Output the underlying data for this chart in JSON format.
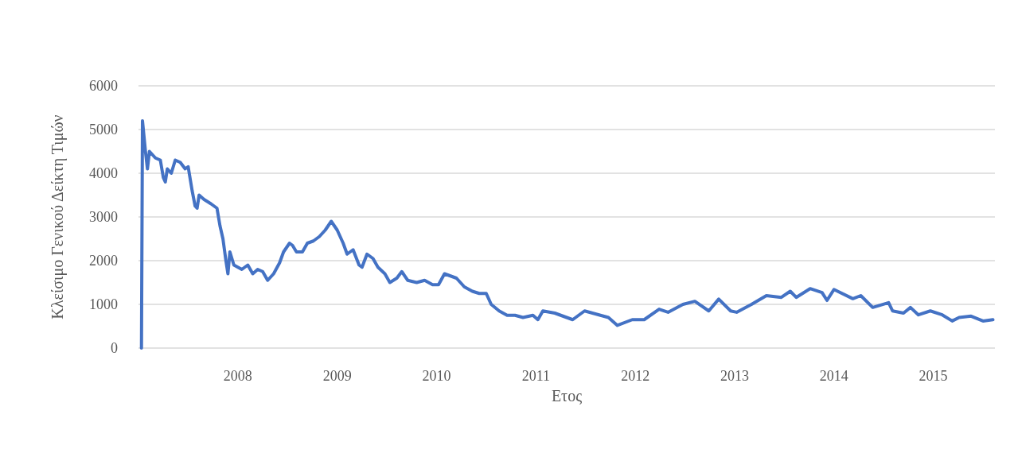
{
  "chart_data": {
    "type": "line",
    "xlabel": "Ετος",
    "ylabel": "Κλείσιμο Γενικού Δείκτη Τιμών",
    "xlim": [
      2007,
      2015.62
    ],
    "xticks": [
      2008,
      2009,
      2010,
      2011,
      2012,
      2013,
      2014,
      2015
    ],
    "ylim": [
      0,
      6000
    ],
    "yticks": [
      0,
      1000,
      2000,
      3000,
      4000,
      5000,
      6000
    ],
    "grid": "y",
    "marker": "none",
    "line_style": "solid",
    "series": [
      {
        "color": "#4472c4",
        "x": [
          2007.03,
          2007.04,
          2007.07,
          2007.09,
          2007.11,
          2007.17,
          2007.22,
          2007.25,
          2007.27,
          2007.29,
          2007.33,
          2007.37,
          2007.42,
          2007.47,
          2007.5,
          2007.54,
          2007.57,
          2007.59,
          2007.61,
          2007.66,
          2007.73,
          2007.79,
          2007.82,
          2007.85,
          2007.88,
          2007.9,
          2007.92,
          2007.96,
          2008.04,
          2008.1,
          2008.15,
          2008.2,
          2008.25,
          2008.3,
          2008.36,
          2008.42,
          2008.46,
          2008.52,
          2008.55,
          2008.59,
          2008.65,
          2008.7,
          2008.76,
          2008.82,
          2008.88,
          2008.94,
          2009.0,
          2009.06,
          2009.1,
          2009.16,
          2009.22,
          2009.25,
          2009.3,
          2009.36,
          2009.41,
          2009.48,
          2009.53,
          2009.6,
          2009.65,
          2009.71,
          2009.8,
          2009.88,
          2009.96,
          2010.02,
          2010.08,
          2010.14,
          2010.2,
          2010.28,
          2010.36,
          2010.43,
          2010.5,
          2010.55,
          2010.63,
          2010.71,
          2010.79,
          2010.87,
          2010.97,
          2011.02,
          2011.07,
          2011.19,
          2011.37,
          2011.49,
          2011.73,
          2011.82,
          2011.97,
          2012.09,
          2012.24,
          2012.33,
          2012.48,
          2012.6,
          2012.74,
          2012.84,
          2012.96,
          2013.02,
          2013.17,
          2013.32,
          2013.47,
          2013.56,
          2013.62,
          2013.76,
          2013.88,
          2013.93,
          2014.0,
          2014.19,
          2014.27,
          2014.39,
          2014.55,
          2014.59,
          2014.7,
          2014.77,
          2014.85,
          2014.97,
          2015.09,
          2015.19,
          2015.26,
          2015.38,
          2015.5,
          2015.6
        ],
        "values": [
          0,
          5200,
          4500,
          4100,
          4500,
          4350,
          4300,
          3900,
          3800,
          4100,
          4000,
          4300,
          4250,
          4100,
          4150,
          3600,
          3250,
          3200,
          3500,
          3400,
          3300,
          3200,
          2800,
          2500,
          2000,
          1700,
          2200,
          1900,
          1800,
          1900,
          1700,
          1800,
          1750,
          1550,
          1700,
          1950,
          2200,
          2400,
          2350,
          2200,
          2200,
          2400,
          2450,
          2550,
          2700,
          2900,
          2700,
          2400,
          2150,
          2250,
          1900,
          1850,
          2150,
          2050,
          1850,
          1700,
          1500,
          1600,
          1750,
          1550,
          1500,
          1550,
          1450,
          1450,
          1700,
          1650,
          1600,
          1400,
          1300,
          1250,
          1250,
          1000,
          850,
          750,
          750,
          700,
          750,
          650,
          850,
          800,
          650,
          850,
          700,
          520,
          650,
          650,
          890,
          820,
          1000,
          1070,
          850,
          1120,
          850,
          820,
          1000,
          1200,
          1160,
          1300,
          1160,
          1360,
          1270,
          1090,
          1340,
          1130,
          1200,
          930,
          1040,
          850,
          800,
          930,
          760,
          850,
          760,
          620,
          700,
          730,
          620,
          650
        ]
      }
    ]
  }
}
